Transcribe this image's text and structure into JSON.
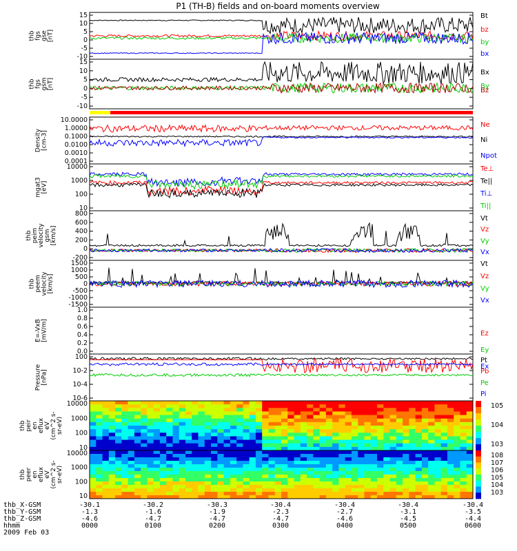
{
  "title": "P1 (TH-B) fields and on-board moments overview",
  "chart_data": [
    {
      "type": "line",
      "ylabels": [
        "thb",
        "fgs",
        "gse",
        "[nT]"
      ],
      "yticks": [
        "15",
        "10",
        "5",
        "0",
        "-5",
        "-10"
      ],
      "ylim": [
        -12,
        17
      ],
      "series": [
        {
          "name": "Bt",
          "color": "#000000"
        },
        {
          "name": "bz",
          "color": "#ff0000"
        },
        {
          "name": "by",
          "color": "#00cc00"
        },
        {
          "name": "bx",
          "color": "#0000ff"
        }
      ]
    },
    {
      "type": "line",
      "ylabels": [
        "thb",
        "fgs",
        "gsm",
        "[nT]"
      ],
      "yticks": [
        "15",
        "10",
        "5",
        "0",
        "-5",
        "-10"
      ],
      "ylim": [
        -14,
        16
      ],
      "series": [
        {
          "name": "Bx",
          "color": "#000000"
        },
        {
          "name": "By",
          "color": "#00cc00"
        },
        {
          "name": "Bz",
          "color": "#aa0000"
        }
      ]
    },
    {
      "type": "line",
      "ylabels": [
        "Density",
        "[cm-3]"
      ],
      "yticks": [
        "10.0000",
        "1.0000",
        "0.1000",
        "0.0100",
        "0.0010",
        "0.0001"
      ],
      "log": true,
      "ylim": [
        0.0001,
        10
      ],
      "series": [
        {
          "name": "Ne",
          "color": "#ff0000"
        },
        {
          "name": "Ni",
          "color": "#000000"
        },
        {
          "name": "Npot",
          "color": "#0000ff"
        }
      ]
    },
    {
      "type": "line",
      "ylabels": [
        "mgat3",
        "[eV]"
      ],
      "yticks": [
        "10000",
        "1000",
        "100",
        "10"
      ],
      "log": true,
      "ylim": [
        1,
        10000
      ],
      "series": [
        {
          "name": "Te⊥",
          "color": "#ff0000"
        },
        {
          "name": "Te||",
          "color": "#000000"
        },
        {
          "name": "Ti⊥",
          "color": "#0000ff"
        },
        {
          "name": "Ti||",
          "color": "#00cc00"
        }
      ]
    },
    {
      "type": "line",
      "ylabels": [
        "thb",
        "peim",
        "velocity",
        "gsm",
        "[km/s]"
      ],
      "yticks": [
        "800",
        "600",
        "400",
        "200",
        "0",
        "-200"
      ],
      "ylim": [
        -200,
        800
      ],
      "series": [
        {
          "name": "Vt",
          "color": "#000000"
        },
        {
          "name": "Vz",
          "color": "#ff0000"
        },
        {
          "name": "Vy",
          "color": "#00cc00"
        },
        {
          "name": "Vx",
          "color": "#0000ff"
        }
      ]
    },
    {
      "type": "line",
      "ylabels": [
        "thb",
        "peem",
        "velocity",
        "[km/s]"
      ],
      "yticks": [
        "1500",
        "1000",
        "500",
        "0",
        "-500",
        "-1000",
        "-1500"
      ],
      "ylim": [
        -1600,
        1600
      ],
      "series": [
        {
          "name": "Vt",
          "color": "#000000"
        },
        {
          "name": "Vz",
          "color": "#ff0000"
        },
        {
          "name": "Vy",
          "color": "#00cc00"
        },
        {
          "name": "Vx",
          "color": "#0000ff"
        }
      ]
    },
    {
      "type": "line",
      "ylabels": [
        "E=-VxB",
        "[mV/m]"
      ],
      "yticks": [
        "1.0",
        "0.8",
        "0.6",
        "0.4",
        "0.2",
        "0.0"
      ],
      "ylim": [
        0,
        1
      ],
      "series": [
        {
          "name": "Ez",
          "color": "#ff0000"
        },
        {
          "name": "Ey",
          "color": "#00cc00"
        },
        {
          "name": "Ex",
          "color": "#0000ff"
        }
      ]
    },
    {
      "type": "line",
      "ylabels": [
        "Pressure",
        "[nPa]"
      ],
      "yticks": [
        "10^0",
        "10^-2",
        "10^-4",
        "10^-6"
      ],
      "log": true,
      "ylim": [
        1e-06,
        1
      ],
      "series": [
        {
          "name": "Pt",
          "color": "#000000"
        },
        {
          "name": "Pb",
          "color": "#ff0000"
        },
        {
          "name": "Pe",
          "color": "#00cc00"
        },
        {
          "name": "Pi",
          "color": "#0000ff"
        }
      ]
    },
    {
      "type": "heatmap",
      "ylabels": [
        "thb",
        "peir",
        "en",
        "eflux",
        "eV",
        "(cm^2 s-",
        "sr-eV)"
      ],
      "yticks": [
        "10000",
        "1000",
        "100",
        "10"
      ],
      "colorbar": [
        "10^5",
        "10^4",
        "10^3"
      ]
    },
    {
      "type": "heatmap",
      "ylabels": [
        "thb",
        "peer",
        "en",
        "eflux",
        "eV",
        "(cm^2 s-",
        "sr-eV)"
      ],
      "yticks": [
        "10000",
        "1000",
        "100",
        "10"
      ],
      "colorbar": [
        "10^8",
        "10^7",
        "10^6",
        "10^5",
        "10^4",
        "10^3"
      ]
    }
  ],
  "footer": {
    "rows": [
      {
        "label": "thb_X-GSM",
        "values": [
          "-30.1",
          "-30.2",
          "-30.3",
          "-30.4",
          "-30.4",
          "-30.4",
          "-30.4"
        ]
      },
      {
        "label": "thb_Y-GSM",
        "values": [
          "-1.3",
          "-1.6",
          "-1.9",
          "-2.3",
          "-2.7",
          "-3.1",
          "-3.5"
        ]
      },
      {
        "label": "thb_Z-GSM",
        "values": [
          "-4.6",
          "-4.7",
          "-4.7",
          "-4.7",
          "-4.6",
          "-4.5",
          "-4.4"
        ]
      },
      {
        "label": "hhmm",
        "values": [
          "0000",
          "0100",
          "0200",
          "0300",
          "0400",
          "0500",
          "0600"
        ]
      }
    ],
    "date": "2009 Feb 03"
  }
}
